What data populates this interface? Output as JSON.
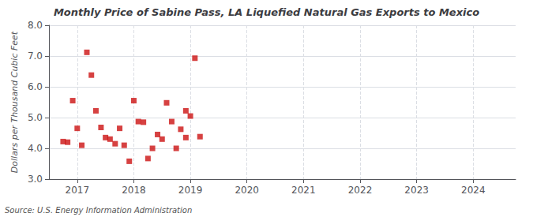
{
  "chart_data": {
    "type": "scatter",
    "title": "Monthly Price of Sabine Pass, LA Liquefied Natural Gas Exports to Mexico",
    "ylabel": "Dollars per Thousand Cubic Feet",
    "annotations": [
      "Source: U.S. Energy Information Administration"
    ],
    "color": "#cc1111",
    "marker": "square",
    "grid": true,
    "xlim": [
      2016.5,
      2024.75
    ],
    "xticks": [
      2017,
      2018,
      2019,
      2020,
      2021,
      2022,
      2023,
      2024
    ],
    "ylim": [
      3.0,
      8.0
    ],
    "yticks": [
      {
        "value": 3.0,
        "label": "3.0"
      },
      {
        "value": 4.0,
        "label": "4.0"
      },
      {
        "value": 5.0,
        "label": "5.0"
      },
      {
        "value": 6.0,
        "label": "6.0"
      },
      {
        "value": 7.0,
        "label": "7.0"
      },
      {
        "value": 8.0,
        "label": "8.0"
      }
    ],
    "x": [
      2016.75,
      2016.83,
      2016.92,
      2017.0,
      2017.08,
      2017.17,
      2017.25,
      2017.33,
      2017.42,
      2017.5,
      2017.58,
      2017.67,
      2017.75,
      2017.83,
      2017.92,
      2018.0,
      2018.08,
      2018.17,
      2018.25,
      2018.33,
      2018.42,
      2018.5,
      2018.58,
      2018.67,
      2018.75,
      2018.83,
      2018.92,
      2018.92,
      2019.0,
      2019.08,
      2019.17
    ],
    "values": [
      4.22,
      4.2,
      5.55,
      4.65,
      4.1,
      7.12,
      6.38,
      5.22,
      4.68,
      4.35,
      4.3,
      4.15,
      4.65,
      4.1,
      3.58,
      5.55,
      4.87,
      4.85,
      3.67,
      4.0,
      4.45,
      4.3,
      5.48,
      4.87,
      4.0,
      4.62,
      5.22,
      4.35,
      5.05,
      6.93,
      4.38
    ]
  }
}
